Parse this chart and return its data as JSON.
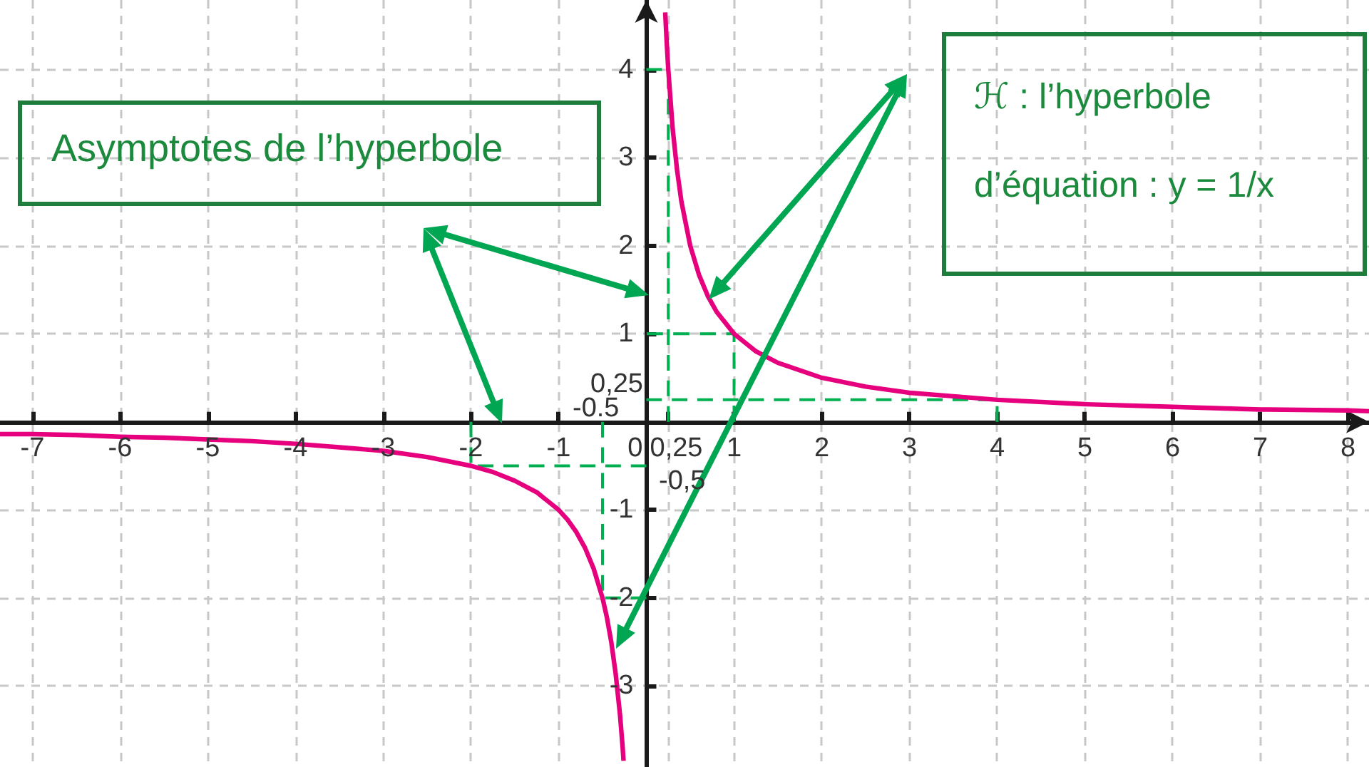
{
  "chart_data": {
    "type": "line",
    "xlim": [
      -7.37,
      8.24
    ],
    "ylim": [
      -3.92,
      4.79
    ],
    "xticks": [
      -7,
      -6,
      -5,
      -4,
      -3,
      -2,
      -1,
      0,
      {
        "value": 0.25,
        "label": "0,25"
      },
      1,
      2,
      3,
      4,
      5,
      6,
      7,
      8
    ],
    "yticks": [
      -3,
      -2,
      -1,
      1,
      2,
      3,
      4
    ],
    "grid": true,
    "line_style": "solid",
    "series": [
      {
        "color": "#e6007e",
        "x": [
          -7.37,
          -7,
          -6.5,
          -6,
          -5.5,
          -5,
          -4.5,
          -4,
          -3.5,
          -3,
          -2.5,
          -2,
          -1.75,
          -1.5,
          -1.25,
          -1,
          -0.9,
          -0.8,
          -0.7,
          -0.6,
          -0.5,
          -0.45,
          -0.4,
          -0.35,
          -0.3,
          -0.27,
          -0.26,
          0,
          0.215,
          0.23,
          0.25,
          0.3,
          0.35,
          0.4,
          0.5,
          0.6,
          0.7,
          0.8,
          1,
          1.25,
          1.5,
          2,
          2.5,
          3,
          3.5,
          4,
          5,
          6,
          7,
          8,
          8.24
        ],
        "values": [
          -0.14,
          -0.14,
          -0.15,
          -0.17,
          -0.18,
          -0.2,
          -0.22,
          -0.25,
          -0.29,
          -0.33,
          -0.4,
          -0.5,
          -0.57,
          -0.67,
          -0.8,
          -1,
          -1.11,
          -1.25,
          -1.43,
          -1.67,
          -2,
          -2.22,
          -2.5,
          -2.86,
          -3.33,
          -3.7,
          -3.85,
          null,
          4.65,
          4.35,
          4,
          3.33,
          2.86,
          2.5,
          2,
          1.67,
          1.43,
          1.25,
          1,
          0.8,
          0.67,
          0.5,
          0.4,
          0.33,
          0.29,
          0.25,
          0.2,
          0.17,
          0.14,
          0.13,
          0.12
        ]
      },
      {
        "color": "#00b050",
        "line_style": "dashed",
        "x": [
          0.25,
          0.25,
          0
        ],
        "values": [
          0,
          4,
          4
        ]
      },
      {
        "color": "#00b050",
        "line_style": "dashed",
        "x": [
          1,
          1,
          0
        ],
        "values": [
          0,
          1,
          1
        ]
      },
      {
        "color": "#00b050",
        "line_style": "dashed",
        "x": [
          4,
          4,
          0
        ],
        "values": [
          0,
          0.25,
          0.25
        ]
      },
      {
        "color": "#00b050",
        "line_style": "dashed",
        "x": [
          -2,
          -2,
          0
        ],
        "values": [
          0,
          -0.5,
          -0.5
        ]
      },
      {
        "color": "#00b050",
        "line_style": "dashed",
        "x": [
          -0.5,
          -0.5,
          0
        ],
        "values": [
          0,
          -2,
          -2
        ]
      }
    ],
    "annotations": [
      "Asymptotes de l’hyperbole",
      "ℋ : l’hyperbole d’équation : y = 1/x",
      "0,25",
      "-0.5",
      "-0,5"
    ]
  }
}
